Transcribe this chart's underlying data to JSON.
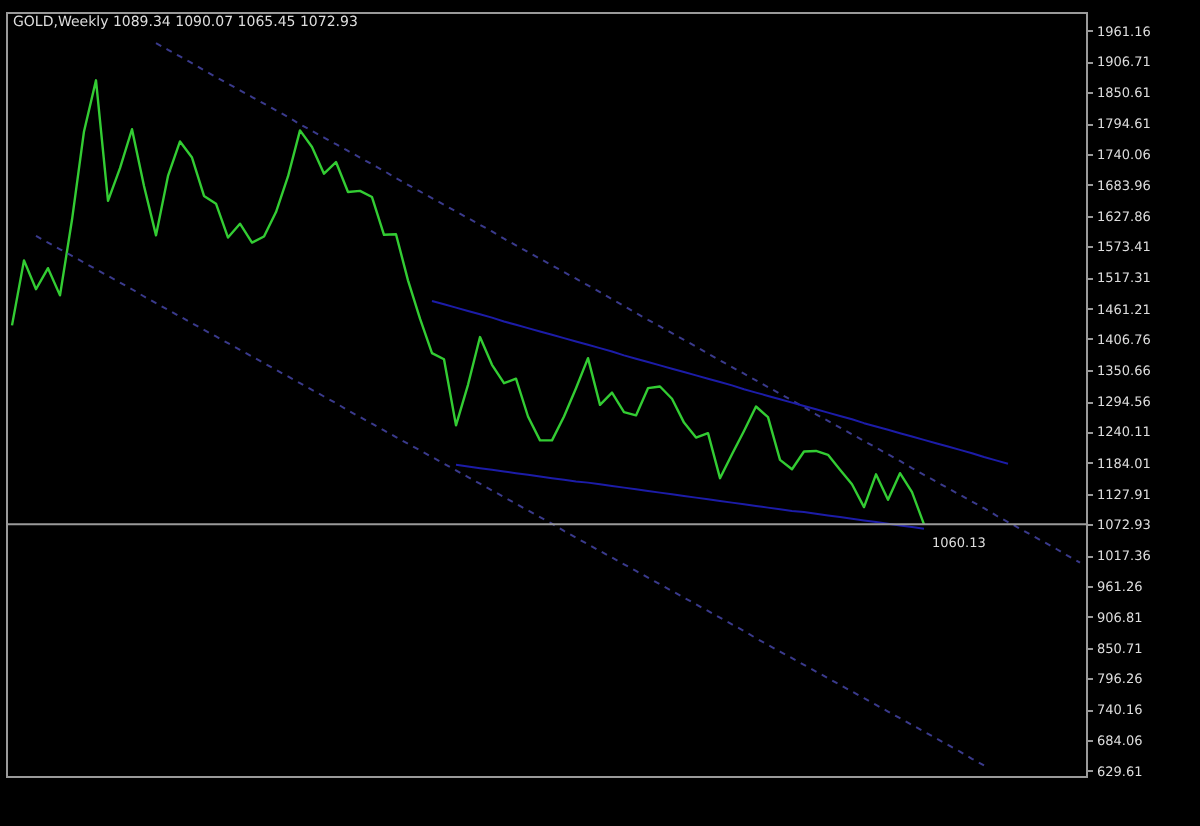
{
  "chart_data": {
    "type": "line",
    "title": "GOLD,Weekly  1089.34 1090.07 1065.45 1072.93",
    "categories": [
      null,
      null,
      null,
      null,
      null,
      null,
      null,
      null,
      null,
      null,
      null,
      null,
      null,
      null,
      null,
      null,
      null,
      null,
      null,
      null,
      null,
      null,
      null,
      null,
      null,
      null,
      null,
      null,
      null,
      null,
      null,
      null,
      null,
      null,
      null,
      null,
      null,
      null,
      null,
      null,
      null,
      null,
      null,
      null,
      null,
      null,
      null,
      null,
      null,
      null,
      null,
      null,
      null,
      null,
      null,
      null,
      null,
      null,
      null,
      null,
      null,
      null,
      null,
      null,
      null,
      null,
      null,
      null,
      null,
      null,
      null,
      null,
      null,
      null,
      null,
      null,
      null,
      null,
      null,
      null,
      null,
      null,
      null,
      null,
      null,
      null,
      null,
      null,
      null,
      null
    ],
    "ylim": [
      620,
      1995
    ],
    "yticks": [
      629.61,
      684.06,
      740.16,
      796.26,
      850.71,
      906.81,
      961.26,
      1017.36,
      1072.93,
      1127.91,
      1184.01,
      1240.11,
      1294.56,
      1350.66,
      1406.76,
      1461.21,
      1517.31,
      1573.41,
      1627.86,
      1683.96,
      1740.06,
      1794.61,
      1850.61,
      1906.71,
      1961.16
    ],
    "tick_labels": "y",
    "grid": false,
    "series": [
      {
        "color": "#33cc33",
        "values": [
          1431,
          1548,
          1496,
          1534,
          1485,
          1621,
          1780,
          1872,
          1655,
          1714,
          1784,
          1682,
          1593,
          1700,
          1762,
          1733,
          1664,
          1650,
          1589,
          1614,
          1580,
          1591,
          1635,
          1699,
          1782,
          1752,
          1704,
          1725,
          1671,
          1673,
          1662,
          1594,
          1595,
          1512,
          1443,
          1381,
          1370,
          1251,
          1324,
          1410,
          1360,
          1327,
          1335,
          1267,
          1224,
          1224,
          1267,
          1318,
          1372,
          1288,
          1310,
          1275,
          1269,
          1318,
          1321,
          1299,
          1256,
          1229,
          1237,
          1156,
          1199,
          1241,
          1285,
          1266,
          1189,
          1172,
          1204,
          1205,
          1198,
          1171,
          1145,
          1104,
          1163,
          1117,
          1165,
          1131,
          1072.93,
          null,
          null,
          null,
          null,
          null,
          null,
          null,
          null,
          null,
          null,
          null,
          null,
          null
        ]
      },
      {
        "color": "#3a3a8c",
        "line_style": "dashed",
        "values": [
          null,
          null,
          null,
          null,
          null,
          null,
          null,
          null,
          null,
          null,
          null,
          null,
          1939,
          1927,
          1915,
          1903,
          1890,
          1878,
          1866,
          1854,
          1842,
          1830,
          1818,
          1806,
          1793,
          1781,
          1769,
          1757,
          1745,
          1733,
          1721,
          1709,
          1696,
          1684,
          1672,
          1660,
          1648,
          1636,
          1624,
          1612,
          1600,
          1587,
          1575,
          1563,
          1551,
          1539,
          1527,
          1515,
          1503,
          1491,
          1478,
          1466,
          1453,
          1441,
          1429,
          1417,
          1405,
          1393,
          1380,
          1368,
          1356,
          1344,
          1332,
          1320,
          1308,
          1296,
          1284,
          1271,
          1259,
          1247,
          1235,
          1223,
          1211,
          1199,
          1187,
          1174,
          1162,
          1150,
          1138,
          1126,
          1114,
          1102,
          1089,
          1077,
          1065,
          1053,
          1041,
          1029,
          1016,
          1004
        ]
      },
      {
        "color": "#3a3a8c",
        "line_style": "dashed",
        "values": [
          null,
          null,
          1592,
          1580,
          1568,
          1556,
          1544,
          1532,
          1520,
          1508,
          1496,
          1483,
          1471,
          1459,
          1447,
          1435,
          1423,
          1411,
          1399,
          1387,
          1375,
          1363,
          1351,
          1339,
          1327,
          1315,
          1303,
          1291,
          1278,
          1266,
          1254,
          1242,
          1230,
          1218,
          1206,
          1194,
          1182,
          1170,
          1158,
          1146,
          1134,
          1122,
          1110,
          1098,
          1086,
          1074,
          1061,
          1049,
          1037,
          1025,
          1013,
          1001,
          989,
          977,
          965,
          953,
          941,
          929,
          917,
          905,
          893,
          881,
          868,
          856,
          844,
          832,
          820,
          808,
          796,
          784,
          772,
          760,
          748,
          736,
          724,
          712,
          700,
          688,
          676,
          664,
          651,
          639,
          null,
          null,
          null,
          null,
          null,
          null,
          null,
          null
        ]
      },
      {
        "color": "#1c1ca8",
        "line_style": "solid",
        "values": [
          null,
          null,
          null,
          null,
          null,
          null,
          null,
          null,
          null,
          null,
          null,
          null,
          null,
          null,
          null,
          null,
          null,
          null,
          null,
          null,
          null,
          null,
          null,
          null,
          null,
          null,
          null,
          null,
          null,
          null,
          null,
          null,
          null,
          null,
          null,
          1475,
          1469,
          1463,
          1457,
          1451,
          1445,
          1438,
          1432,
          1426,
          1420,
          1414,
          1408,
          1402,
          1396,
          1390,
          1384,
          1377,
          1371,
          1365,
          1359,
          1353,
          1347,
          1341,
          1335,
          1329,
          1323,
          1316,
          1310,
          1304,
          1298,
          1292,
          1286,
          1280,
          1274,
          1268,
          1262,
          1255,
          1249,
          1243,
          1237,
          1231,
          1225,
          1219,
          1213,
          1207,
          1201,
          1194,
          1188,
          1182,
          null,
          null,
          null,
          null,
          null,
          null
        ]
      },
      {
        "color": "#1c1ca8",
        "line_style": "solid",
        "values": [
          null,
          null,
          null,
          null,
          null,
          null,
          null,
          null,
          null,
          null,
          null,
          null,
          null,
          null,
          null,
          null,
          null,
          null,
          null,
          null,
          null,
          null,
          null,
          null,
          null,
          null,
          null,
          null,
          null,
          null,
          null,
          null,
          null,
          null,
          null,
          null,
          null,
          1180,
          1177,
          1174,
          1171,
          1168,
          1165,
          1162,
          1159,
          1156,
          1153,
          1150,
          1148,
          1145,
          1142,
          1139,
          1136,
          1133,
          1130,
          1127,
          1124,
          1121,
          1118,
          1115,
          1112,
          1109,
          1106,
          1103,
          1100,
          1097,
          1095,
          1092,
          1089,
          1086,
          1083,
          1080,
          1077,
          1074,
          1071,
          1068,
          1065,
          null,
          null,
          null,
          null,
          null,
          null,
          null,
          null,
          null,
          null,
          null,
          null,
          null
        ]
      }
    ],
    "ref_lines": [
      {
        "axis": "y",
        "value": 1072.93,
        "color": "#9a9a9a"
      }
    ],
    "annotations": [
      {
        "text": "1060.13",
        "y": 1060.13
      }
    ]
  }
}
